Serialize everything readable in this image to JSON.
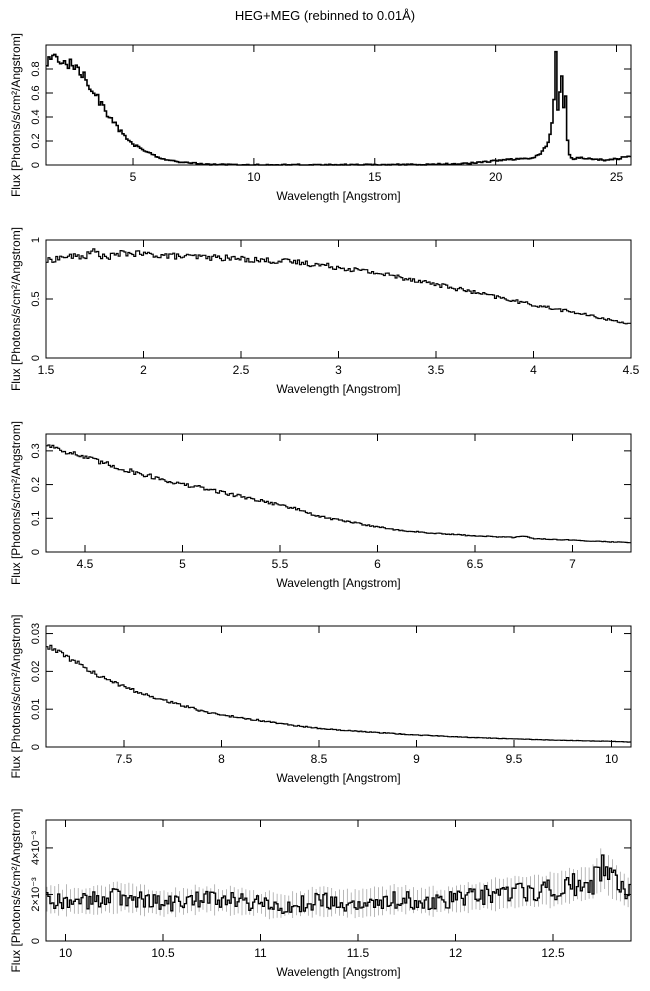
{
  "figure": {
    "title": "HEG+MEG (rebinned to 0.01Å)"
  },
  "chart_data": [
    {
      "type": "line",
      "panel": "overview",
      "xlabel": "Wavelength [Angstrom]",
      "ylabel": "Flux [Photons/s/cm²/Angstrom]",
      "xlim": [
        1.4,
        25.6
      ],
      "ylim": [
        0,
        1.0
      ],
      "xticks": [
        {
          "v": 5,
          "label": "5"
        },
        {
          "v": 10,
          "label": "10"
        },
        {
          "v": 15,
          "label": "15"
        },
        {
          "v": 20,
          "label": "20"
        },
        {
          "v": 25,
          "label": "25"
        }
      ],
      "yticks": [
        {
          "v": 0,
          "label": "0"
        },
        {
          "v": 0.2,
          "label": "0.2"
        },
        {
          "v": 0.4,
          "label": "0.4"
        },
        {
          "v": 0.6,
          "label": "0.6"
        },
        {
          "v": 0.8,
          "label": "0.8"
        }
      ],
      "error_bars": false,
      "series": [
        {
          "x": [
            1.5,
            1.7,
            2.0,
            2.3,
            2.6,
            3.0,
            3.4,
            3.8,
            4.2,
            4.6,
            5.0,
            5.4,
            5.8,
            6.2,
            6.6,
            7.0,
            7.5,
            8.0,
            9.0,
            10.0,
            12.0,
            14.0,
            16.0,
            17.0,
            18.0,
            19.0,
            19.5,
            20.0,
            20.5,
            21.0,
            21.5,
            21.8,
            22.0,
            22.2,
            22.4,
            22.5,
            22.6,
            22.7,
            22.8,
            22.9,
            23.0,
            23.2,
            23.5,
            24.0,
            24.5,
            25.0,
            25.5
          ],
          "y": [
            0.85,
            0.88,
            0.89,
            0.85,
            0.82,
            0.75,
            0.6,
            0.47,
            0.35,
            0.25,
            0.17,
            0.13,
            0.09,
            0.05,
            0.035,
            0.025,
            0.015,
            0.005,
            0.002,
            0.001,
            0.001,
            0.001,
            0.002,
            0.004,
            0.008,
            0.015,
            0.025,
            0.035,
            0.045,
            0.05,
            0.06,
            0.08,
            0.14,
            0.2,
            0.45,
            0.96,
            0.3,
            0.9,
            0.45,
            0.6,
            0.1,
            0.05,
            0.06,
            0.05,
            0.04,
            0.05,
            0.07
          ]
        }
      ]
    },
    {
      "type": "line",
      "panel": "1.5-4.5",
      "xlabel": "Wavelength [Angstrom]",
      "ylabel": "Flux [Photons/s/cm²/Angstrom]",
      "xlim": [
        1.5,
        4.5
      ],
      "ylim": [
        0,
        1.0
      ],
      "xticks": [
        {
          "v": 1.5,
          "label": "1.5"
        },
        {
          "v": 2,
          "label": "2"
        },
        {
          "v": 2.5,
          "label": "2.5"
        },
        {
          "v": 3,
          "label": "3"
        },
        {
          "v": 3.5,
          "label": "3.5"
        },
        {
          "v": 4,
          "label": "4"
        },
        {
          "v": 4.5,
          "label": "4.5"
        }
      ],
      "yticks": [
        {
          "v": 0,
          "label": "0"
        },
        {
          "v": 0.5,
          "label": "0.5"
        },
        {
          "v": 1,
          "label": "1"
        }
      ],
      "error_bars": false,
      "series": [
        {
          "x": [
            1.5,
            1.6,
            1.7,
            1.75,
            1.8,
            1.9,
            2.0,
            2.2,
            2.4,
            2.6,
            2.8,
            3.0,
            3.2,
            3.4,
            3.6,
            3.8,
            4.0,
            4.2,
            4.4,
            4.5
          ],
          "y": [
            0.82,
            0.86,
            0.86,
            0.91,
            0.85,
            0.89,
            0.88,
            0.86,
            0.85,
            0.83,
            0.81,
            0.77,
            0.72,
            0.66,
            0.59,
            0.52,
            0.45,
            0.39,
            0.32,
            0.29
          ]
        }
      ]
    },
    {
      "type": "line",
      "panel": "4.3-7.3",
      "xlabel": "Wavelength [Angstrom]",
      "ylabel": "Flux [Photons/s/cm²/Angstrom]",
      "xlim": [
        4.3,
        7.3
      ],
      "ylim": [
        0,
        0.35
      ],
      "xticks": [
        {
          "v": 4.5,
          "label": "4.5"
        },
        {
          "v": 5,
          "label": "5"
        },
        {
          "v": 5.5,
          "label": "5.5"
        },
        {
          "v": 6,
          "label": "6"
        },
        {
          "v": 6.5,
          "label": "6.5"
        },
        {
          "v": 7,
          "label": "7"
        }
      ],
      "yticks": [
        {
          "v": 0,
          "label": "0"
        },
        {
          "v": 0.1,
          "label": "0.1"
        },
        {
          "v": 0.2,
          "label": "0.2"
        },
        {
          "v": 0.3,
          "label": "0.3"
        }
      ],
      "error_bars": false,
      "series": [
        {
          "x": [
            4.3,
            4.5,
            4.7,
            4.9,
            5.0,
            5.1,
            5.3,
            5.5,
            5.6,
            5.7,
            5.9,
            6.0,
            6.1,
            6.3,
            6.5,
            6.7,
            6.75,
            6.8,
            7.0,
            7.2,
            7.3
          ],
          "y": [
            0.32,
            0.28,
            0.245,
            0.215,
            0.2,
            0.19,
            0.165,
            0.14,
            0.125,
            0.105,
            0.085,
            0.075,
            0.065,
            0.055,
            0.048,
            0.043,
            0.047,
            0.04,
            0.035,
            0.03,
            0.028
          ]
        }
      ]
    },
    {
      "type": "line",
      "panel": "7.1-10.1",
      "xlabel": "Wavelength [Angstrom]",
      "ylabel": "Flux [Photons/s/cm²/Angstrom]",
      "xlim": [
        7.1,
        10.1
      ],
      "ylim": [
        0,
        0.032
      ],
      "xticks": [
        {
          "v": 7.5,
          "label": "7.5"
        },
        {
          "v": 8,
          "label": "8"
        },
        {
          "v": 8.5,
          "label": "8.5"
        },
        {
          "v": 9,
          "label": "9"
        },
        {
          "v": 9.5,
          "label": "9.5"
        },
        {
          "v": 10,
          "label": "10"
        }
      ],
      "yticks": [
        {
          "v": 0,
          "label": "0"
        },
        {
          "v": 0.01,
          "label": "0.01"
        },
        {
          "v": 0.02,
          "label": "0.02"
        },
        {
          "v": 0.03,
          "label": "0.03"
        }
      ],
      "error_bars": false,
      "series": [
        {
          "x": [
            7.1,
            7.2,
            7.3,
            7.4,
            7.5,
            7.6,
            7.7,
            7.8,
            7.9,
            8.0,
            8.2,
            8.4,
            8.6,
            8.8,
            9.0,
            9.2,
            9.4,
            9.6,
            9.8,
            10.0,
            10.1
          ],
          "y": [
            0.027,
            0.024,
            0.021,
            0.018,
            0.016,
            0.014,
            0.0125,
            0.011,
            0.0095,
            0.0085,
            0.007,
            0.0055,
            0.0045,
            0.0038,
            0.0032,
            0.0027,
            0.0023,
            0.002,
            0.0017,
            0.0015,
            0.0013
          ]
        }
      ]
    },
    {
      "type": "line",
      "panel": "9.9-12.9",
      "xlabel": "Wavelength [Angstrom]",
      "ylabel": "Flux [Photons/s/cm²/Angstrom]",
      "xlim": [
        9.9,
        12.9
      ],
      "ylim": [
        0,
        0.0052
      ],
      "xticks": [
        {
          "v": 10,
          "label": "10"
        },
        {
          "v": 10.5,
          "label": "10.5"
        },
        {
          "v": 11,
          "label": "11"
        },
        {
          "v": 11.5,
          "label": "11.5"
        },
        {
          "v": 12,
          "label": "12"
        },
        {
          "v": 12.5,
          "label": "12.5"
        }
      ],
      "yticks": [
        {
          "v": 0,
          "label": "0"
        },
        {
          "v": 0.002,
          "label": "2×10⁻³"
        },
        {
          "v": 0.004,
          "label": "4×10⁻³"
        }
      ],
      "error_bars": true,
      "series": [
        {
          "x": [
            9.9,
            10.1,
            10.3,
            10.5,
            10.7,
            10.9,
            11.1,
            11.3,
            11.5,
            11.7,
            11.9,
            12.1,
            12.3,
            12.5,
            12.6,
            12.7,
            12.75,
            12.8,
            12.85,
            12.9
          ],
          "y": [
            0.0018,
            0.0017,
            0.0019,
            0.0016,
            0.0018,
            0.0017,
            0.0015,
            0.0017,
            0.0016,
            0.0018,
            0.0017,
            0.0019,
            0.0021,
            0.0022,
            0.0024,
            0.0025,
            0.0031,
            0.0027,
            0.0023,
            0.002
          ]
        }
      ]
    }
  ]
}
